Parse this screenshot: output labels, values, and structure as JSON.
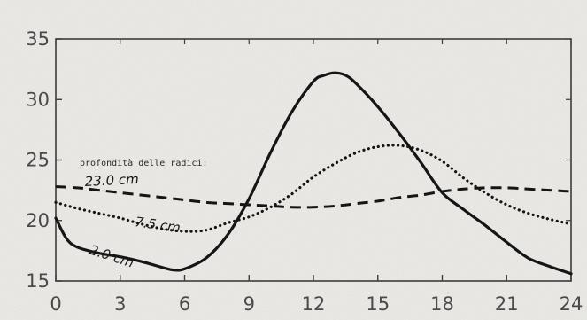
{
  "chart_data": {
    "type": "line",
    "title": "",
    "xlabel": "",
    "ylabel": "",
    "xlim": [
      0,
      24
    ],
    "ylim": [
      15,
      35
    ],
    "grid": false,
    "xticks": [
      "0",
      "3",
      "6",
      "9",
      "12",
      "15",
      "18",
      "21",
      "24"
    ],
    "yticks": [
      "15",
      "20",
      "25",
      "30",
      "35"
    ],
    "annotation": "profondità delle radici:",
    "series": [
      {
        "name": "2.0 cm",
        "style": "solid",
        "x": [
          0,
          0.5,
          1,
          2,
          3,
          4,
          5,
          5.5,
          6,
          7,
          8,
          9,
          10,
          11,
          12,
          12.5,
          13,
          13.5,
          14,
          15,
          16,
          17,
          18,
          19,
          20,
          21,
          22,
          23,
          24
        ],
        "y": [
          20.2,
          18.5,
          17.8,
          17.3,
          17.0,
          16.6,
          16.1,
          15.9,
          16.0,
          16.9,
          18.8,
          21.8,
          25.6,
          29.0,
          31.5,
          32.0,
          32.2,
          32.0,
          31.3,
          29.4,
          27.2,
          24.8,
          22.3,
          20.9,
          19.6,
          18.2,
          16.9,
          16.2,
          15.6
        ]
      },
      {
        "name": "7.5 cm",
        "style": "dotted",
        "x": [
          0,
          1,
          2,
          3,
          4,
          5,
          6,
          7,
          8,
          9,
          10,
          11,
          12,
          13,
          14,
          15,
          16,
          17,
          18,
          19,
          20,
          21,
          22,
          23,
          24
        ],
        "y": [
          21.5,
          21.0,
          20.6,
          20.2,
          19.7,
          19.3,
          19.1,
          19.2,
          19.8,
          20.3,
          21.1,
          22.2,
          23.6,
          24.7,
          25.6,
          26.1,
          26.2,
          25.8,
          24.9,
          23.5,
          22.3,
          21.3,
          20.6,
          20.1,
          19.7
        ]
      },
      {
        "name": "23.0 cm",
        "style": "dashed",
        "x": [
          0,
          1,
          2,
          3,
          4,
          5,
          6,
          7,
          8,
          9,
          10,
          11,
          12,
          13,
          14,
          15,
          16,
          17,
          18,
          19,
          20,
          21,
          22,
          23,
          24
        ],
        "y": [
          22.8,
          22.7,
          22.5,
          22.3,
          22.1,
          21.9,
          21.7,
          21.5,
          21.4,
          21.3,
          21.2,
          21.1,
          21.1,
          21.2,
          21.4,
          21.6,
          21.9,
          22.1,
          22.4,
          22.6,
          22.7,
          22.7,
          22.6,
          22.5,
          22.4
        ]
      }
    ]
  }
}
